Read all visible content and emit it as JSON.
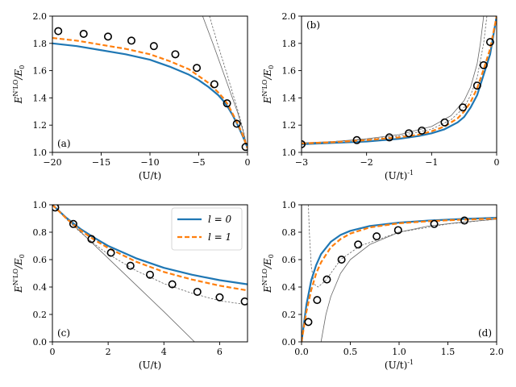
{
  "figure": {
    "legend": {
      "placement": "top-right of panel (c)",
      "entries": [
        {
          "label": "l = 0",
          "color": "#1f77b4",
          "style": "solid"
        },
        {
          "label": "l = 1",
          "color": "#ff7f0e",
          "style": "dashed"
        }
      ]
    },
    "colors": {
      "l0": "#1f77b4",
      "l1": "#ff7f0e",
      "aux": "#666666",
      "points": "#000000"
    }
  },
  "chart_data": [
    {
      "id": "a",
      "type": "line",
      "tag": "(a)",
      "xlabel": "(U/t)",
      "ylabel": "E^{N'LO}/E_0",
      "xlim": [
        -20,
        0
      ],
      "ylim": [
        1.0,
        2.0
      ],
      "xticks": [
        -20,
        -15,
        -10,
        -5,
        0
      ],
      "xtick_labels": [
        "−20",
        "−15",
        "−10",
        "−5",
        "0"
      ],
      "yticks": [
        1.0,
        1.2,
        1.4,
        1.6,
        1.8,
        2.0
      ],
      "ytick_labels": [
        "1.0",
        "1.2",
        "1.4",
        "1.6",
        "1.8",
        "2.0"
      ],
      "series": [
        {
          "name": "l = 0",
          "style": "solid",
          "color": "#1f77b4",
          "x": [
            -20,
            -17.5,
            -15,
            -12.5,
            -10,
            -8,
            -6,
            -5,
            -4,
            -3,
            -2.5,
            -2,
            -1.5,
            -1,
            -0.5,
            -0.2,
            0
          ],
          "y": [
            1.8,
            1.78,
            1.75,
            1.72,
            1.68,
            1.63,
            1.57,
            1.53,
            1.48,
            1.42,
            1.38,
            1.33,
            1.27,
            1.2,
            1.12,
            1.07,
            1.03
          ]
        },
        {
          "name": "l = 1",
          "style": "dashed",
          "color": "#ff7f0e",
          "x": [
            -20,
            -17.5,
            -15,
            -12.5,
            -10,
            -8,
            -6,
            -5,
            -4,
            -3,
            -2.5,
            -2,
            -1.5,
            -1,
            -0.5,
            -0.2,
            0
          ],
          "y": [
            1.84,
            1.82,
            1.79,
            1.76,
            1.72,
            1.67,
            1.61,
            1.56,
            1.51,
            1.44,
            1.4,
            1.35,
            1.28,
            1.21,
            1.13,
            1.07,
            1.03
          ]
        },
        {
          "name": "aux-1",
          "style": "thin-solid",
          "color": "#666666",
          "x": [
            -4.6,
            -3.5,
            -2.5,
            -1.5,
            -1,
            -0.5,
            0
          ],
          "y": [
            2.0,
            1.79,
            1.59,
            1.39,
            1.29,
            1.17,
            1.03
          ]
        },
        {
          "name": "aux-2",
          "style": "thin-dashed",
          "color": "#666666",
          "x": [
            -3.9,
            -3,
            -2,
            -1.5,
            -1,
            -0.5,
            0
          ],
          "y": [
            2.0,
            1.78,
            1.55,
            1.43,
            1.31,
            1.18,
            1.03
          ]
        },
        {
          "name": "data",
          "style": "markers",
          "color": "#000000",
          "x": [
            -19.4,
            -16.8,
            -14.3,
            -11.9,
            -9.6,
            -7.4,
            -5.2,
            -3.4,
            -2.1,
            -1.1,
            -0.2
          ],
          "y": [
            1.89,
            1.87,
            1.85,
            1.82,
            1.78,
            1.72,
            1.62,
            1.5,
            1.36,
            1.21,
            1.04
          ]
        }
      ]
    },
    {
      "id": "b",
      "type": "line",
      "tag": "(b)",
      "xlabel": "(U/t)^{-1}",
      "ylabel": "E^{N'LO}/E_0",
      "xlim": [
        -3,
        0
      ],
      "ylim": [
        1.0,
        2.0
      ],
      "xticks": [
        -3,
        -2,
        -1,
        0
      ],
      "xtick_labels": [
        "−3",
        "−2",
        "−1",
        "0"
      ],
      "yticks": [
        1.0,
        1.2,
        1.4,
        1.6,
        1.8,
        2.0
      ],
      "ytick_labels": [
        "1.0",
        "1.2",
        "1.4",
        "1.6",
        "1.8",
        "2.0"
      ],
      "series": [
        {
          "name": "l = 0",
          "style": "solid",
          "color": "#1f77b4",
          "x": [
            -3,
            -2.5,
            -2,
            -1.5,
            -1.2,
            -1,
            -0.8,
            -0.6,
            -0.5,
            -0.4,
            -0.3,
            -0.2,
            -0.1,
            -0.05,
            0
          ],
          "y": [
            1.06,
            1.07,
            1.08,
            1.1,
            1.12,
            1.14,
            1.17,
            1.22,
            1.26,
            1.33,
            1.42,
            1.57,
            1.72,
            1.86,
            2.0
          ]
        },
        {
          "name": "l = 1",
          "style": "dashed",
          "color": "#ff7f0e",
          "x": [
            -3,
            -2.5,
            -2,
            -1.5,
            -1.2,
            -1,
            -0.8,
            -0.6,
            -0.5,
            -0.4,
            -0.3,
            -0.2,
            -0.1,
            -0.05,
            0
          ],
          "y": [
            1.065,
            1.075,
            1.09,
            1.11,
            1.13,
            1.155,
            1.19,
            1.25,
            1.3,
            1.37,
            1.47,
            1.61,
            1.76,
            1.88,
            2.0
          ]
        },
        {
          "name": "aux-1",
          "style": "thin-solid",
          "color": "#666666",
          "x": [
            -3,
            -2.5,
            -2,
            -1.5,
            -1,
            -0.7,
            -0.5,
            -0.4,
            -0.3,
            -0.25,
            -0.2
          ],
          "y": [
            1.07,
            1.08,
            1.1,
            1.13,
            1.19,
            1.27,
            1.38,
            1.48,
            1.65,
            1.8,
            2.0
          ]
        },
        {
          "name": "aux-2",
          "style": "thin-dashed",
          "color": "#666666",
          "x": [
            -3,
            -2.5,
            -2,
            -1.5,
            -1,
            -0.7,
            -0.5,
            -0.4,
            -0.3,
            -0.2,
            -0.15
          ],
          "y": [
            1.065,
            1.08,
            1.095,
            1.12,
            1.17,
            1.24,
            1.33,
            1.42,
            1.55,
            1.8,
            2.0
          ]
        },
        {
          "name": "data",
          "style": "markers",
          "color": "#000000",
          "x": [
            -3.0,
            -2.15,
            -1.65,
            -1.35,
            -1.15,
            -0.8,
            -0.52,
            -0.3,
            -0.2,
            -0.1
          ],
          "y": [
            1.06,
            1.09,
            1.11,
            1.14,
            1.16,
            1.22,
            1.33,
            1.49,
            1.64,
            1.81
          ]
        }
      ]
    },
    {
      "id": "c",
      "type": "line",
      "tag": "(c)",
      "xlabel": "(U/t)",
      "ylabel": "E^{N'LO}/E_0",
      "xlim": [
        0,
        7
      ],
      "ylim": [
        0.0,
        1.0
      ],
      "xticks": [
        0,
        2,
        4,
        6
      ],
      "xtick_labels": [
        "0",
        "2",
        "4",
        "6"
      ],
      "yticks": [
        0.0,
        0.2,
        0.4,
        0.6,
        0.8,
        1.0
      ],
      "ytick_labels": [
        "0.0",
        "0.2",
        "0.4",
        "0.6",
        "0.8",
        "1.0"
      ],
      "series": [
        {
          "name": "l = 0",
          "style": "solid",
          "color": "#1f77b4",
          "x": [
            0,
            0.5,
            1,
            1.5,
            2,
            3,
            4,
            5,
            6,
            7
          ],
          "y": [
            1.0,
            0.905,
            0.825,
            0.76,
            0.7,
            0.61,
            0.54,
            0.49,
            0.45,
            0.42
          ]
        },
        {
          "name": "l = 1",
          "style": "dashed",
          "color": "#ff7f0e",
          "x": [
            0,
            0.5,
            1,
            1.5,
            2,
            3,
            4,
            5,
            6,
            7
          ],
          "y": [
            1.0,
            0.9,
            0.815,
            0.745,
            0.685,
            0.585,
            0.51,
            0.455,
            0.41,
            0.375
          ]
        },
        {
          "name": "aux-1",
          "style": "thin-solid",
          "color": "#666666",
          "x": [
            0,
            1,
            2,
            3,
            4,
            5.1
          ],
          "y": [
            1.0,
            0.805,
            0.61,
            0.415,
            0.22,
            0.0
          ]
        },
        {
          "name": "aux-2",
          "style": "thin-dashed",
          "color": "#666666",
          "x": [
            0,
            0.5,
            1,
            1.5,
            2,
            3,
            4,
            5,
            6,
            7
          ],
          "y": [
            1.0,
            0.895,
            0.8,
            0.715,
            0.64,
            0.52,
            0.425,
            0.355,
            0.3,
            0.27
          ]
        },
        {
          "name": "data",
          "style": "markers",
          "color": "#000000",
          "x": [
            0.1,
            0.75,
            1.4,
            2.1,
            2.8,
            3.5,
            4.3,
            5.2,
            6.0,
            6.9
          ],
          "y": [
            0.98,
            0.86,
            0.75,
            0.65,
            0.555,
            0.49,
            0.42,
            0.365,
            0.325,
            0.295
          ]
        }
      ]
    },
    {
      "id": "d",
      "type": "line",
      "tag": "(d)",
      "xlabel": "(U/t)^{-1}",
      "ylabel": "E^{N'LO}/E_0",
      "xlim": [
        0,
        2.0
      ],
      "ylim": [
        0.0,
        1.0
      ],
      "xticks": [
        0,
        0.5,
        1.0,
        1.5,
        2.0
      ],
      "xtick_labels": [
        "0.0",
        "0.5",
        "1.0",
        "1.5",
        "2.0"
      ],
      "yticks": [
        0.0,
        0.2,
        0.4,
        0.6,
        0.8,
        1.0
      ],
      "ytick_labels": [
        "0.0",
        "0.2",
        "0.4",
        "0.6",
        "0.8",
        "1.0"
      ],
      "series": [
        {
          "name": "l = 0",
          "style": "solid",
          "color": "#1f77b4",
          "x": [
            0,
            0.05,
            0.1,
            0.15,
            0.2,
            0.3,
            0.4,
            0.5,
            0.7,
            1.0,
            1.3,
            1.6,
            2.0
          ],
          "y": [
            0.0,
            0.27,
            0.45,
            0.56,
            0.64,
            0.73,
            0.78,
            0.81,
            0.845,
            0.87,
            0.885,
            0.895,
            0.905
          ]
        },
        {
          "name": "l = 1",
          "style": "dashed",
          "color": "#ff7f0e",
          "x": [
            0,
            0.05,
            0.1,
            0.15,
            0.2,
            0.3,
            0.4,
            0.5,
            0.7,
            1.0,
            1.3,
            1.6,
            2.0
          ],
          "y": [
            0.0,
            0.22,
            0.38,
            0.5,
            0.58,
            0.69,
            0.75,
            0.79,
            0.835,
            0.865,
            0.88,
            0.89,
            0.9
          ]
        },
        {
          "name": "aux-1",
          "style": "thin-solid",
          "color": "#666666",
          "x": [
            0.2,
            0.25,
            0.3,
            0.4,
            0.5,
            0.7,
            1.0,
            1.3,
            1.6,
            2.0
          ],
          "y": [
            0.0,
            0.2,
            0.33,
            0.5,
            0.6,
            0.71,
            0.8,
            0.845,
            0.87,
            0.895
          ]
        },
        {
          "name": "aux-2",
          "style": "thin-dashed",
          "color": "#666666",
          "x": [
            0.07,
            0.08,
            0.1,
            0.13,
            0.17,
            0.25,
            0.4,
            0.6,
            1.0,
            1.5,
            2.0
          ],
          "y": [
            1.0,
            0.8,
            0.55,
            0.42,
            0.4,
            0.45,
            0.6,
            0.7,
            0.8,
            0.86,
            0.895
          ]
        },
        {
          "name": "data",
          "style": "markers",
          "color": "#000000",
          "x": [
            0.07,
            0.16,
            0.26,
            0.41,
            0.58,
            0.77,
            0.99,
            1.36,
            1.67
          ],
          "y": [
            0.145,
            0.305,
            0.455,
            0.6,
            0.71,
            0.77,
            0.815,
            0.86,
            0.885
          ]
        }
      ]
    }
  ]
}
